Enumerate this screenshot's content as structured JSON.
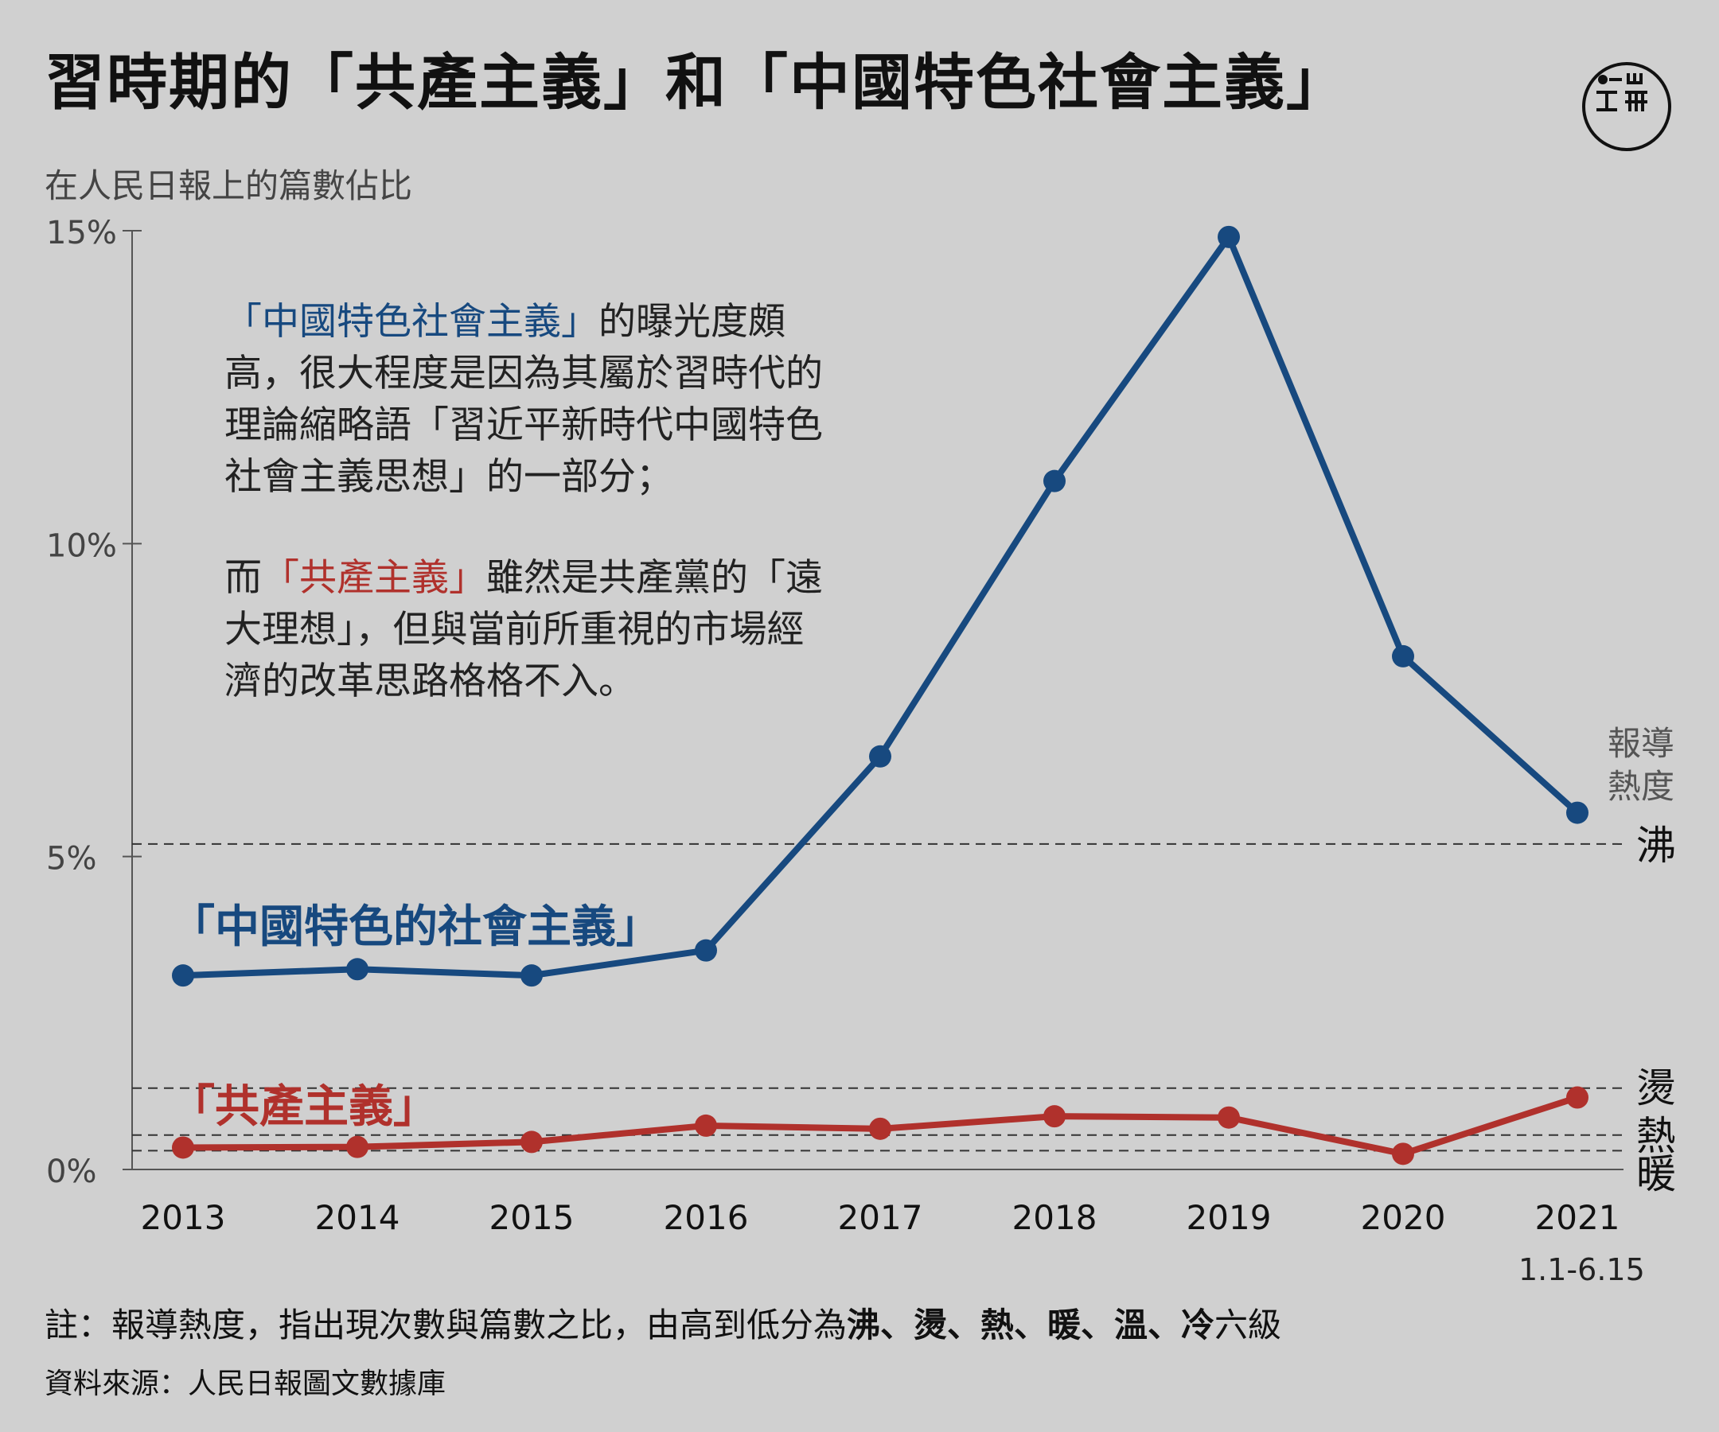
{
  "header": {
    "title": "習時期的「共產主義」和「中國特色社會主義」",
    "subtitle": "在人民日報上的篇數佔比"
  },
  "logo": {
    "name": "initium-logo-icon"
  },
  "colors": {
    "blue": "#17497f",
    "red": "#b0312c",
    "background": "#d0d0d0"
  },
  "annotation": {
    "p1_highlight": "「中國特色社會主義」",
    "p1_rest_line1": "的曝光度頗",
    "p1_rest": "高，很大程度是因為其屬於習時代的理論縮略語「習近平新時代中國特色社會主義思想」的一部分；",
    "p2_lead": "而",
    "p2_highlight": "「共產主義」",
    "p2_rest": "雖然是共產黨的「遠大理想」，但與當前所重視的市場經濟的改革思路格格不入。"
  },
  "chart_data": {
    "type": "line",
    "x": [
      "2013",
      "2014",
      "2015",
      "2016",
      "2017",
      "2018",
      "2019",
      "2020",
      "2021"
    ],
    "x_sublabel": "1.1-6.15",
    "ylim": [
      0,
      15
    ],
    "yticks": [
      0,
      5,
      10,
      15
    ],
    "ytick_labels": [
      "0%",
      "5%",
      "10%",
      "15%"
    ],
    "series": [
      {
        "name": "「中國特色的社會主義」",
        "color": "#17497f",
        "values": [
          3.1,
          3.2,
          3.1,
          3.5,
          6.6,
          11.0,
          14.9,
          8.2,
          5.7
        ]
      },
      {
        "name": "「共產主義」",
        "color": "#b0312c",
        "values": [
          0.35,
          0.36,
          0.44,
          0.7,
          0.65,
          0.85,
          0.83,
          0.25,
          1.15
        ]
      }
    ],
    "heat_title": "報導熱度",
    "heat_levels": [
      {
        "label": "沸",
        "value": 5.2
      },
      {
        "label": "燙",
        "value": 1.3
      },
      {
        "label": "熱",
        "value": 0.55
      },
      {
        "label": "暖",
        "value": 0.3
      }
    ]
  },
  "note": {
    "prefix": "註：報導熱度，指出現次數與篇數之比，由高到低分為",
    "levels": "沸、燙、熱、暖、溫、冷",
    "suffix": "六級"
  },
  "source": "資料來源：人民日報圖文數據庫"
}
